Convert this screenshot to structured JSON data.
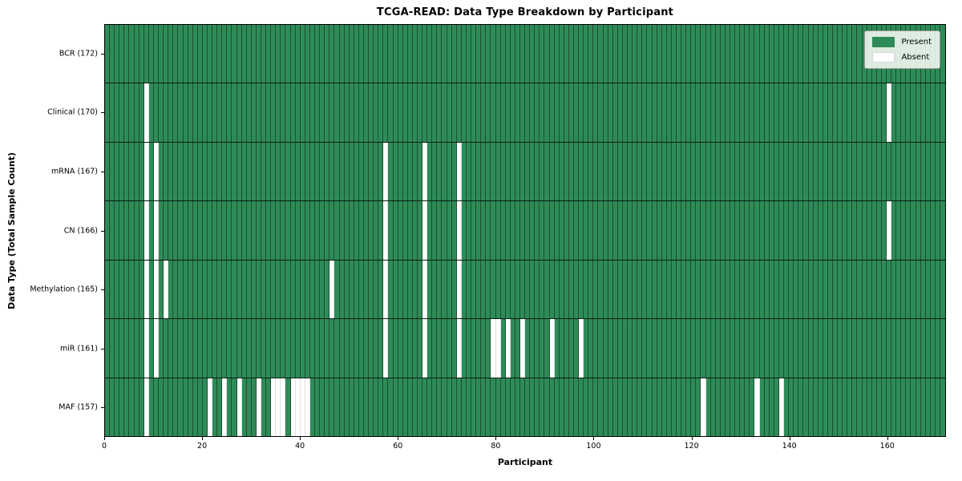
{
  "title": "TCGA-READ: Data Type Breakdown by Participant",
  "xlabel": "Participant",
  "ylabel": "Data Type (Total Sample Count)",
  "legend": {
    "present_label": "Present",
    "absent_label": "Absent",
    "position": "upper right"
  },
  "colors": {
    "present": "#2e8b57",
    "absent": "#ffffff"
  },
  "chart_data": {
    "type": "heatmap",
    "n_participants": 172,
    "x_range": [
      0,
      172
    ],
    "x_ticks": [
      0,
      20,
      40,
      60,
      80,
      100,
      120,
      140,
      160
    ],
    "grid": true,
    "rows": [
      {
        "label": "BCR (172)",
        "data_type": "BCR",
        "present_count": 172,
        "absent_participants": []
      },
      {
        "label": "Clinical (170)",
        "data_type": "Clinical",
        "present_count": 170,
        "absent_participants": [
          8,
          160
        ]
      },
      {
        "label": "mRNA (167)",
        "data_type": "mRNA",
        "present_count": 167,
        "absent_participants": [
          8,
          10,
          57,
          65,
          72
        ]
      },
      {
        "label": "CN (166)",
        "data_type": "CN",
        "present_count": 166,
        "absent_participants": [
          8,
          10,
          57,
          65,
          72,
          160
        ]
      },
      {
        "label": "Methylation (165)",
        "data_type": "Methylation",
        "present_count": 165,
        "absent_participants": [
          8,
          10,
          12,
          46,
          57,
          65,
          72
        ]
      },
      {
        "label": "miR (161)",
        "data_type": "miR",
        "present_count": 161,
        "absent_participants": [
          8,
          10,
          57,
          65,
          72,
          79,
          80,
          82,
          85,
          91,
          97
        ]
      },
      {
        "label": "MAF (157)",
        "data_type": "MAF",
        "present_count": 157,
        "absent_participants": [
          8,
          21,
          24,
          27,
          31,
          34,
          35,
          36,
          38,
          39,
          40,
          41,
          122,
          133,
          138
        ]
      }
    ]
  }
}
